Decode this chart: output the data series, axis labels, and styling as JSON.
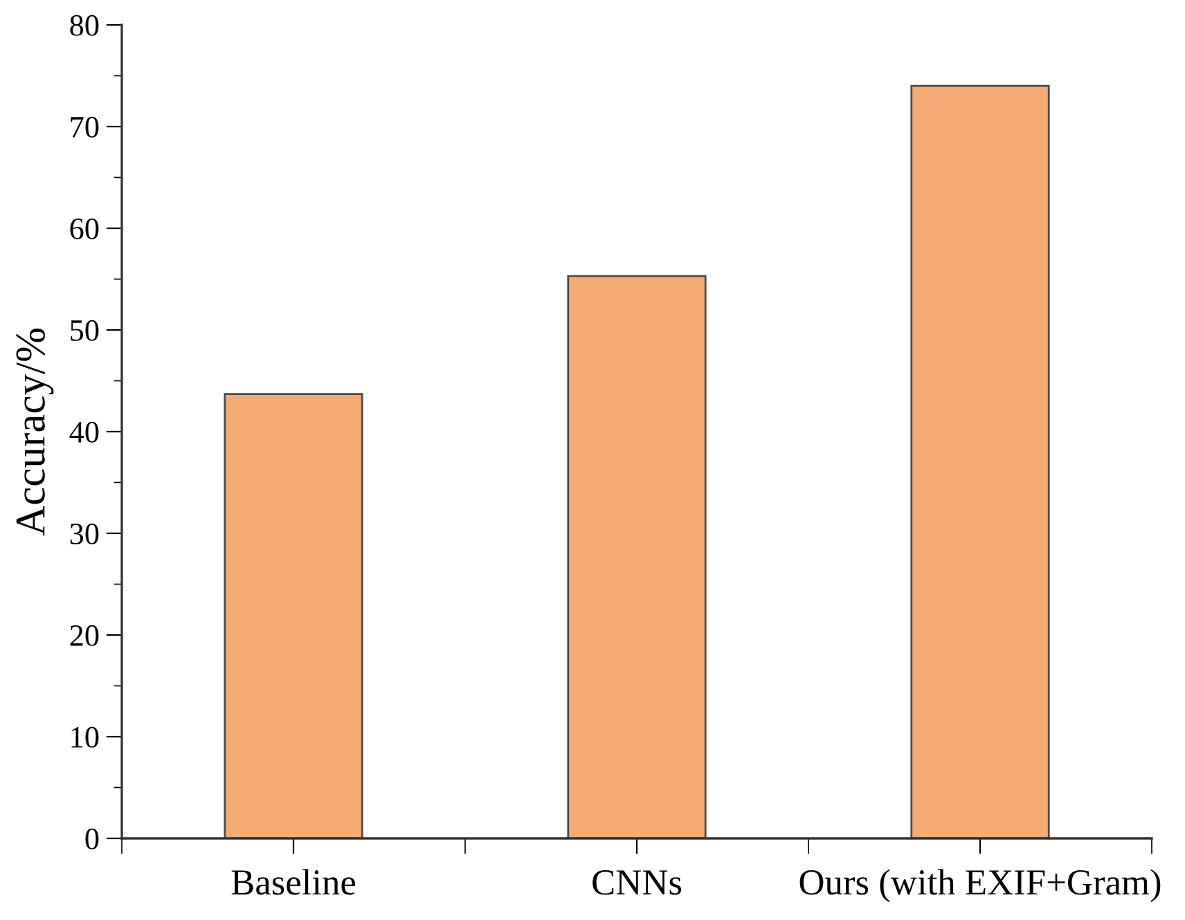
{
  "chart_data": {
    "type": "bar",
    "ylabel": "Accuracy/%",
    "categories": [
      "Baseline",
      "CNNs",
      "Ours (with EXIF+Gram)"
    ],
    "values": [
      43.7,
      55.3,
      74.0
    ],
    "color": "#f4ac74",
    "ylim": [
      0,
      80
    ],
    "yticks": [
      0,
      10,
      20,
      30,
      40,
      50,
      60,
      70,
      80
    ],
    "grid": false
  }
}
